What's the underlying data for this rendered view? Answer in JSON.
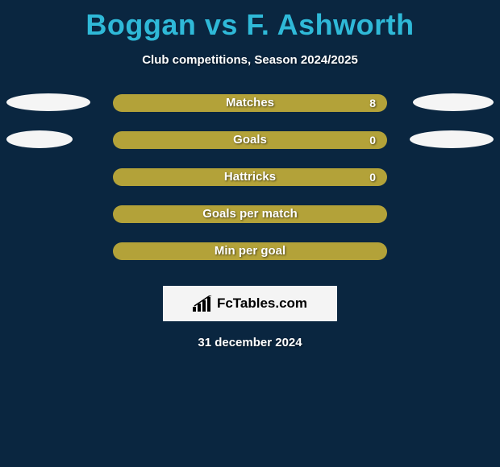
{
  "title": "Boggan vs F. Ashworth",
  "subtitle": "Club competitions, Season 2024/2025",
  "date": "31 december 2024",
  "logo_text": "FcTables.com",
  "colors": {
    "background": "#0a2640",
    "title": "#2fb9d8",
    "text": "#ffffff",
    "bar_left": "#b3a239",
    "bar_right": "#b3a239",
    "bar_border_left": "#b3a239",
    "bar_border_right": "#b3a239",
    "ellipse_left": "#f5f5f5",
    "ellipse_right": "#f5f5f5",
    "logo_bg": "#f4f4f4"
  },
  "ellipse_widths": {
    "left_row0": 104,
    "right_row0": 100,
    "left_row1": 82,
    "right_row1": 104
  },
  "rows": [
    {
      "label": "Matches",
      "left_pct": 50,
      "right_pct": 50,
      "right_value": "8",
      "show_ellipses": true,
      "left_ellipse_w": 104,
      "right_ellipse_w": 100
    },
    {
      "label": "Goals",
      "left_pct": 50,
      "right_pct": 50,
      "right_value": "0",
      "show_ellipses": true,
      "left_ellipse_w": 82,
      "right_ellipse_w": 104
    },
    {
      "label": "Hattricks",
      "left_pct": 50,
      "right_pct": 50,
      "right_value": "0",
      "show_ellipses": false
    },
    {
      "label": "Goals per match",
      "left_pct": 50,
      "right_pct": 50,
      "right_value": "",
      "show_ellipses": false
    },
    {
      "label": "Min per goal",
      "left_pct": 50,
      "right_pct": 50,
      "right_value": "",
      "show_ellipses": false
    }
  ]
}
